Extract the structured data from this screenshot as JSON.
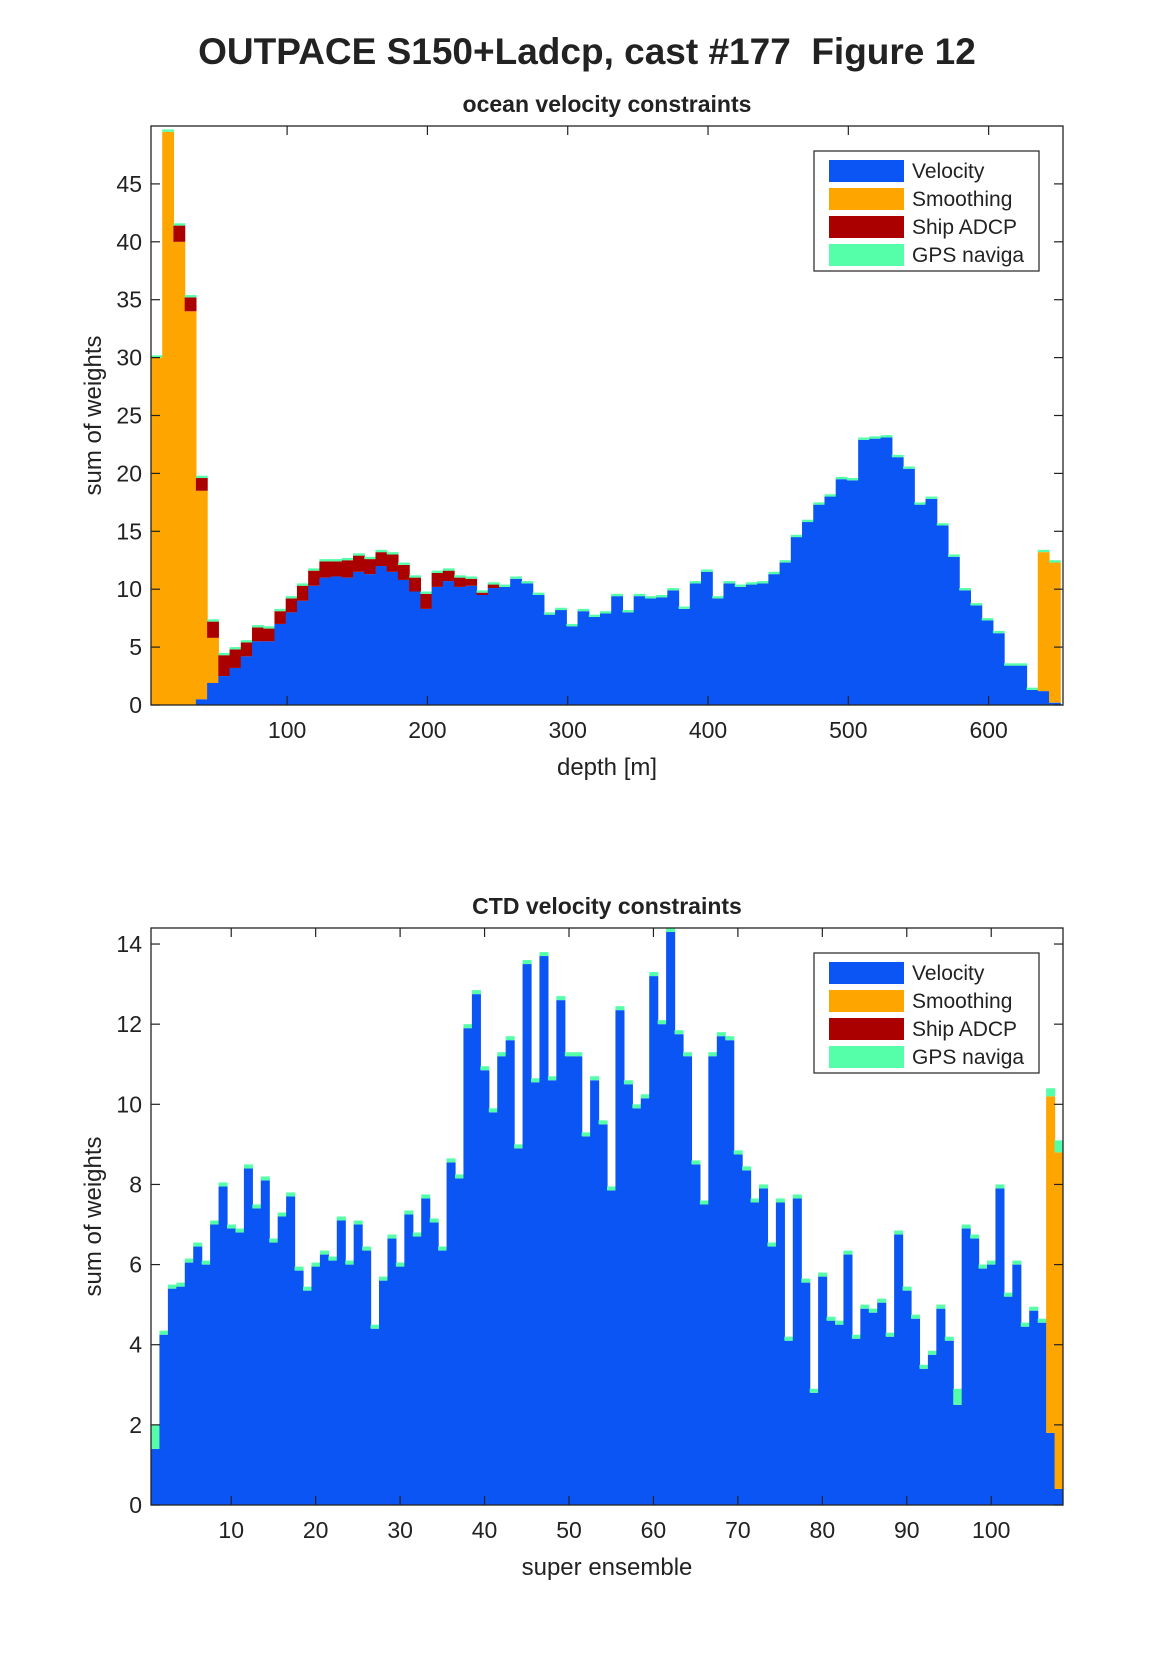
{
  "title": "OUTPACE S150+Ladcp, cast #177  Figure 12",
  "chart_data": [
    {
      "type": "bar",
      "stacked": true,
      "title": "ocean velocity constraints",
      "xlabel": "depth [m]",
      "ylabel": "sum of weights",
      "x": [
        7,
        15,
        23,
        31,
        39,
        47,
        55,
        63,
        71,
        79,
        87,
        95,
        103,
        111,
        119,
        127,
        135,
        143,
        151,
        159,
        167,
        175,
        183,
        191,
        199,
        207,
        215,
        223,
        231,
        239,
        247,
        255,
        263,
        271,
        279,
        287,
        295,
        303,
        311,
        319,
        327,
        335,
        343,
        351,
        359,
        367,
        375,
        383,
        391,
        399,
        407,
        415,
        423,
        431,
        439,
        447,
        455,
        463,
        471,
        479,
        487,
        495,
        503,
        511,
        519,
        527,
        535,
        543,
        551,
        559,
        567,
        575,
        583,
        591,
        599,
        607,
        615,
        623,
        631,
        639,
        647
      ],
      "series": [
        {
          "name": "Velocity",
          "color": "#0b55f5",
          "values": [
            0,
            0,
            0,
            0,
            0.5,
            1.9,
            2.5,
            3.2,
            4.2,
            5.5,
            5.5,
            7,
            8,
            9,
            10.3,
            11,
            11.1,
            11,
            11.5,
            11.3,
            12,
            11.5,
            10.8,
            9.8,
            8.3,
            10.2,
            10.7,
            10.2,
            10.3,
            9.5,
            10.1,
            10.2,
            10.9,
            10.5,
            9.5,
            7.8,
            8.2,
            6.8,
            8.1,
            7.6,
            7.9,
            9.4,
            8.0,
            9.4,
            9.2,
            9.3,
            9.9,
            8.3,
            10.5,
            11.5,
            9.2,
            10.5,
            10.2,
            10.4,
            10.5,
            11.3,
            12.3,
            14.5,
            15.8,
            17.3,
            18.0,
            19.5,
            19.4,
            22.9,
            23.0,
            23.1,
            21.4,
            20.4,
            17.3,
            17.8,
            15.5,
            12.8,
            9.9,
            8.6,
            7.3,
            6.2,
            3.4,
            3.4,
            1.3,
            1.2,
            0.2
          ]
        },
        {
          "name": "Smoothing",
          "color": "#ffa500",
          "values": [
            30,
            49.5,
            40,
            34,
            18,
            3.9,
            0,
            0,
            0,
            0,
            0,
            0,
            0,
            0,
            0,
            0,
            0,
            0,
            0,
            0,
            0,
            0,
            0,
            0,
            0,
            0,
            0,
            0,
            0,
            0,
            0,
            0,
            0,
            0,
            0,
            0,
            0,
            0,
            0,
            0,
            0,
            0,
            0,
            0,
            0,
            0,
            0,
            0,
            0,
            0,
            0,
            0,
            0,
            0,
            0,
            0,
            0,
            0,
            0,
            0,
            0,
            0,
            0,
            0,
            0,
            0,
            0,
            0,
            0,
            0,
            0,
            0,
            0,
            0,
            0,
            0,
            0,
            0,
            0,
            12.0,
            12.1
          ]
        },
        {
          "name": "Ship ADCP",
          "color": "#aa0000",
          "values": [
            0,
            0,
            1.4,
            1.2,
            1.1,
            1.4,
            1.8,
            1.6,
            1.2,
            1.2,
            1.1,
            1.1,
            1.2,
            1.3,
            1.3,
            1.4,
            1.3,
            1.5,
            1.4,
            1.3,
            1.2,
            1.5,
            1.3,
            1.2,
            1.3,
            1.2,
            0.9,
            0.8,
            0.6,
            0.2,
            0.3,
            0,
            0,
            0,
            0,
            0,
            0,
            0,
            0,
            0,
            0,
            0,
            0,
            0,
            0,
            0,
            0,
            0,
            0,
            0,
            0,
            0,
            0,
            0,
            0,
            0,
            0,
            0,
            0,
            0,
            0,
            0,
            0,
            0,
            0,
            0,
            0,
            0,
            0,
            0,
            0,
            0,
            0,
            0,
            0,
            0,
            0,
            0,
            0,
            0,
            0
          ]
        },
        {
          "name": "GPS naviga",
          "color": "#55ffaa",
          "values": [
            0.2,
            0.2,
            0.2,
            0.2,
            0.2,
            0.2,
            0.2,
            0.2,
            0.2,
            0.2,
            0.2,
            0.2,
            0.2,
            0.2,
            0.2,
            0.2,
            0.2,
            0.2,
            0.2,
            0.2,
            0.2,
            0.2,
            0.2,
            0.2,
            0.2,
            0.2,
            0.2,
            0.2,
            0.2,
            0.2,
            0.2,
            0.2,
            0.2,
            0.2,
            0.2,
            0.2,
            0.2,
            0.2,
            0.2,
            0.2,
            0.2,
            0.2,
            0.2,
            0.2,
            0.2,
            0.2,
            0.2,
            0.2,
            0.2,
            0.2,
            0.2,
            0.2,
            0.2,
            0.2,
            0.2,
            0.2,
            0.2,
            0.2,
            0.2,
            0.2,
            0.2,
            0.2,
            0.2,
            0.2,
            0.2,
            0.2,
            0.2,
            0.2,
            0.2,
            0.2,
            0.2,
            0.2,
            0.2,
            0.2,
            0.2,
            0.2,
            0.2,
            0.2,
            0.2,
            0.2,
            0.2
          ]
        }
      ],
      "xlim": [
        3,
        653
      ],
      "ylim": [
        0,
        50
      ],
      "xticks": [
        100,
        200,
        300,
        400,
        500,
        600
      ],
      "yticks": [
        0,
        5,
        10,
        15,
        20,
        25,
        30,
        35,
        40,
        45
      ],
      "legend": "upper right"
    },
    {
      "type": "bar",
      "stacked": true,
      "title": "CTD velocity constraints",
      "xlabel": "super ensemble",
      "ylabel": "sum of weights",
      "x": [
        1,
        2,
        3,
        4,
        5,
        6,
        7,
        8,
        9,
        10,
        11,
        12,
        13,
        14,
        15,
        16,
        17,
        18,
        19,
        20,
        21,
        22,
        23,
        24,
        25,
        26,
        27,
        28,
        29,
        30,
        31,
        32,
        33,
        34,
        35,
        36,
        37,
        38,
        39,
        40,
        41,
        42,
        43,
        44,
        45,
        46,
        47,
        48,
        49,
        50,
        51,
        52,
        53,
        54,
        55,
        56,
        57,
        58,
        59,
        60,
        61,
        62,
        63,
        64,
        65,
        66,
        67,
        68,
        69,
        70,
        71,
        72,
        73,
        74,
        75,
        76,
        77,
        78,
        79,
        80,
        81,
        82,
        83,
        84,
        85,
        86,
        87,
        88,
        89,
        90,
        91,
        92,
        93,
        94,
        95,
        96,
        97,
        98,
        99,
        100,
        101,
        102,
        103,
        104,
        105,
        106,
        107,
        108
      ],
      "series": [
        {
          "name": "Velocity",
          "color": "#0b55f5",
          "values": [
            1.4,
            4.25,
            5.4,
            5.45,
            6.05,
            6.45,
            6.0,
            7.0,
            7.95,
            6.9,
            6.8,
            8.4,
            7.4,
            8.1,
            6.55,
            7.2,
            7.7,
            5.85,
            5.35,
            5.95,
            6.25,
            6.1,
            7.1,
            6.0,
            7.0,
            6.35,
            4.4,
            5.6,
            6.65,
            5.95,
            7.25,
            6.7,
            7.65,
            7.05,
            6.35,
            8.55,
            8.15,
            11.9,
            12.75,
            10.85,
            9.8,
            11.2,
            11.6,
            8.9,
            13.5,
            10.55,
            13.7,
            10.6,
            12.6,
            11.2,
            11.2,
            9.2,
            10.6,
            9.5,
            7.85,
            12.35,
            10.5,
            9.9,
            10.15,
            13.2,
            12.0,
            14.3,
            11.75,
            11.2,
            8.5,
            7.5,
            11.2,
            11.7,
            11.6,
            8.75,
            8.35,
            7.55,
            7.9,
            6.45,
            7.55,
            4.1,
            7.65,
            5.55,
            2.8,
            5.7,
            4.6,
            4.5,
            6.25,
            4.15,
            4.9,
            4.8,
            5.05,
            4.2,
            6.75,
            5.35,
            4.65,
            3.4,
            3.75,
            4.9,
            4.1,
            2.5,
            6.9,
            6.65,
            5.9,
            6.0,
            7.9,
            5.2,
            6.0,
            4.45,
            4.85,
            4.55,
            1.8,
            0.4
          ]
        },
        {
          "name": "Smoothing",
          "color": "#ffa500",
          "values": [
            0,
            0,
            0,
            0,
            0,
            0,
            0,
            0,
            0,
            0,
            0,
            0,
            0,
            0,
            0,
            0,
            0,
            0,
            0,
            0,
            0,
            0,
            0,
            0,
            0,
            0,
            0,
            0,
            0,
            0,
            0,
            0,
            0,
            0,
            0,
            0,
            0,
            0,
            0,
            0,
            0,
            0,
            0,
            0,
            0,
            0,
            0,
            0,
            0,
            0,
            0,
            0,
            0,
            0,
            0,
            0,
            0,
            0,
            0,
            0,
            0,
            0,
            0,
            0,
            0,
            0,
            0,
            0,
            0,
            0,
            0,
            0,
            0,
            0,
            0,
            0,
            0,
            0,
            0,
            0,
            0,
            0,
            0,
            0,
            0,
            0,
            0,
            0,
            0,
            0,
            0,
            0,
            0,
            0,
            0,
            0,
            0,
            0,
            0,
            0,
            0,
            0,
            0,
            0,
            0,
            0,
            8.4,
            8.4
          ]
        },
        {
          "name": "Ship ADCP",
          "color": "#aa0000",
          "values": [
            0,
            0,
            0,
            0,
            0,
            0,
            0,
            0,
            0,
            0,
            0,
            0,
            0,
            0,
            0,
            0,
            0,
            0,
            0,
            0,
            0,
            0,
            0,
            0,
            0,
            0,
            0,
            0,
            0,
            0,
            0,
            0,
            0,
            0,
            0,
            0,
            0,
            0,
            0,
            0,
            0,
            0,
            0,
            0,
            0,
            0,
            0,
            0,
            0,
            0,
            0,
            0,
            0,
            0,
            0,
            0,
            0,
            0,
            0,
            0,
            0,
            0,
            0,
            0,
            0,
            0,
            0,
            0,
            0,
            0,
            0,
            0,
            0,
            0,
            0,
            0,
            0,
            0,
            0,
            0,
            0,
            0,
            0,
            0,
            0,
            0,
            0,
            0,
            0,
            0,
            0,
            0,
            0,
            0,
            0,
            0,
            0,
            0,
            0,
            0,
            0,
            0,
            0,
            0,
            0,
            0,
            0,
            0
          ]
        },
        {
          "name": "GPS naviga",
          "color": "#55ffaa",
          "values": [
            0.6,
            0.1,
            0.1,
            0.1,
            0.1,
            0.1,
            0.1,
            0.1,
            0.1,
            0.1,
            0.1,
            0.1,
            0.1,
            0.1,
            0.1,
            0.1,
            0.1,
            0.1,
            0.1,
            0.1,
            0.1,
            0.1,
            0.1,
            0.1,
            0.1,
            0.1,
            0.1,
            0.1,
            0.1,
            0.1,
            0.1,
            0.1,
            0.1,
            0.1,
            0.1,
            0.1,
            0.1,
            0.1,
            0.1,
            0.1,
            0.1,
            0.1,
            0.1,
            0.1,
            0.1,
            0.1,
            0.1,
            0.1,
            0.1,
            0.1,
            0.1,
            0.1,
            0.1,
            0.1,
            0.1,
            0.1,
            0.1,
            0.1,
            0.1,
            0.1,
            0.1,
            0.1,
            0.1,
            0.1,
            0.1,
            0.1,
            0.1,
            0.1,
            0.1,
            0.1,
            0.1,
            0.1,
            0.1,
            0.1,
            0.1,
            0.1,
            0.1,
            0.1,
            0.1,
            0.1,
            0.1,
            0.1,
            0.1,
            0.1,
            0.1,
            0.1,
            0.1,
            0.1,
            0.1,
            0.1,
            0.1,
            0.1,
            0.1,
            0.1,
            0.1,
            0.4,
            0.1,
            0.1,
            0.1,
            0.1,
            0.1,
            0.1,
            0.1,
            0.1,
            0.1,
            0.1,
            0.2,
            0.3
          ]
        }
      ],
      "xlim": [
        0.5,
        108.5
      ],
      "ylim": [
        0,
        14.4
      ],
      "xticks": [
        10,
        20,
        30,
        40,
        50,
        60,
        70,
        80,
        90,
        100
      ],
      "yticks": [
        0,
        2,
        4,
        6,
        8,
        10,
        12,
        14
      ],
      "legend": "upper right"
    }
  ]
}
